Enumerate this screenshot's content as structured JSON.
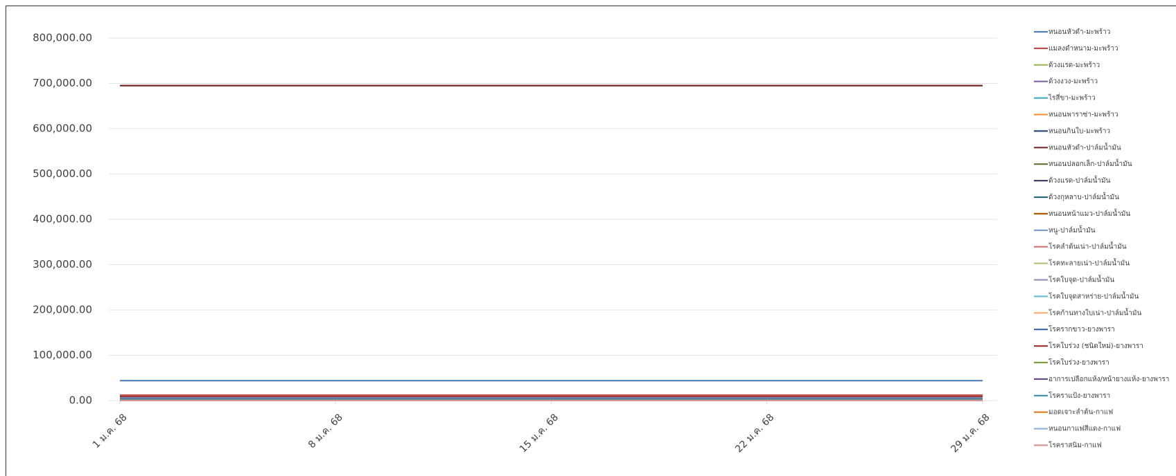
{
  "chart_data": {
    "type": "line",
    "categories": [
      "1 ม.ค. 68",
      "8 ม.ค. 68",
      "15 ม.ค. 68",
      "22 ม.ค. 68",
      "29 ม.ค. 68"
    ],
    "ylim": [
      0,
      800000
    ],
    "yticks": [
      {
        "value": 0,
        "label": "0.00"
      },
      {
        "value": 100000,
        "label": "100,000.00"
      },
      {
        "value": 200000,
        "label": "200,000.00"
      },
      {
        "value": 300000,
        "label": "300,000.00"
      },
      {
        "value": 400000,
        "label": "400,000.00"
      },
      {
        "value": 500000,
        "label": "500,000.00"
      },
      {
        "value": 600000,
        "label": "600,000.00"
      },
      {
        "value": 700000,
        "label": "700,000.00"
      },
      {
        "value": 800000,
        "label": "800,000.00"
      }
    ],
    "grid": true,
    "legend": "right",
    "series": [
      {
        "name": "หนอนหัวดำ-มะพร้าว",
        "color": "#4f81bd",
        "values": [
          44000,
          44000,
          44000,
          44000,
          44000
        ]
      },
      {
        "name": "แมลงดำหนาม-มะพร้าว",
        "color": "#c0504d",
        "values": [
          12000,
          12000,
          12000,
          12000,
          12000
        ]
      },
      {
        "name": "ด้วงแรด-มะพร้าว",
        "color": "#9bbb59",
        "values": [
          3000,
          3000,
          3000,
          3000,
          3000
        ]
      },
      {
        "name": "ด้วงงวง-มะพร้าว",
        "color": "#8064a2",
        "values": [
          2000,
          2000,
          2000,
          2000,
          2000
        ]
      },
      {
        "name": "ไรสี่ขา-มะพร้าว",
        "color": "#4bacc6",
        "values": [
          1000,
          1000,
          1000,
          1000,
          1000
        ]
      },
      {
        "name": "หนอนพาราซ่า-มะพร้าว",
        "color": "#f79646",
        "values": [
          500,
          500,
          500,
          500,
          500
        ]
      },
      {
        "name": "หนอนกินใบ-มะพร้าว",
        "color": "#2c4d75",
        "values": [
          800,
          800,
          800,
          800,
          800
        ]
      },
      {
        "name": "หนอนหัวดำ-ปาล์มน้ำมัน",
        "color": "#772c2a",
        "values": [
          695000,
          695000,
          695000,
          695000,
          695000
        ]
      },
      {
        "name": "หนอนปลอกเล็ก-ปาล์มน้ำมัน",
        "color": "#5f7530",
        "values": [
          5000,
          5000,
          5000,
          5000,
          5000
        ]
      },
      {
        "name": "ด้วงแรด-ปาล์มน้ำมัน",
        "color": "#4d3b62",
        "values": [
          4000,
          4000,
          4000,
          4000,
          4000
        ]
      },
      {
        "name": "ด้วงกุหลาบ-ปาล์มน้ำมัน",
        "color": "#276a7c",
        "values": [
          1500,
          1500,
          1500,
          1500,
          1500
        ]
      },
      {
        "name": "หนอนหน้าแมว-ปาล์มน้ำมัน",
        "color": "#b65708",
        "values": [
          2500,
          2500,
          2500,
          2500,
          2500
        ]
      },
      {
        "name": "หนู-ปาล์มน้ำมัน",
        "color": "#729aca",
        "values": [
          6000,
          6000,
          6000,
          6000,
          6000
        ]
      },
      {
        "name": "โรคลำต้นเน่า-ปาล์มน้ำมัน",
        "color": "#cd7371",
        "values": [
          1200,
          1200,
          1200,
          1200,
          1200
        ]
      },
      {
        "name": "โรคทะลายเน่า-ปาล์มน้ำมัน",
        "color": "#afc97a",
        "values": [
          700,
          700,
          700,
          700,
          700
        ]
      },
      {
        "name": "โรคใบจุด-ปาล์มน้ำมัน",
        "color": "#a18db8",
        "values": [
          600,
          600,
          600,
          600,
          600
        ]
      },
      {
        "name": "โรคใบจุดสาหร่าย-ปาล์มน้ำมัน",
        "color": "#6fbdd1",
        "values": [
          400,
          400,
          400,
          400,
          400
        ]
      },
      {
        "name": "โรคก้านทางใบเน่า-ปาล์มน้ำมัน",
        "color": "#f9ab6b",
        "values": [
          300,
          300,
          300,
          300,
          300
        ]
      },
      {
        "name": "โรครากขาว-ยางพารา",
        "color": "#3a679c",
        "values": [
          3500,
          3500,
          3500,
          3500,
          3500
        ]
      },
      {
        "name": "โรคใบร่วง (ชนิดใหม่)-ยางพารา",
        "color": "#9e3b38",
        "values": [
          9000,
          9000,
          9000,
          9000,
          9000
        ]
      },
      {
        "name": "โรคใบร่วง-ยางพารา",
        "color": "#7e9c40",
        "values": [
          2000,
          2000,
          2000,
          2000,
          2000
        ]
      },
      {
        "name": "อาการเปลือกแห้ง/หน้ายางแห้ง-ยางพารา",
        "color": "#664f82",
        "values": [
          1000,
          1000,
          1000,
          1000,
          1000
        ]
      },
      {
        "name": "โรคราแป้ง-ยางพารา",
        "color": "#358ea6",
        "values": [
          1500,
          1500,
          1500,
          1500,
          1500
        ]
      },
      {
        "name": "มอดเจาะลำต้น-กาแฟ",
        "color": "#e07b1f",
        "values": [
          200,
          200,
          200,
          200,
          200
        ]
      },
      {
        "name": "หนอนกาแฟสีแดง-กาแฟ",
        "color": "#95b3d7",
        "values": [
          100,
          100,
          100,
          100,
          100
        ]
      },
      {
        "name": "โรคราสนิม-กาแฟ",
        "color": "#d99694",
        "values": [
          150,
          150,
          150,
          150,
          150
        ]
      }
    ]
  }
}
